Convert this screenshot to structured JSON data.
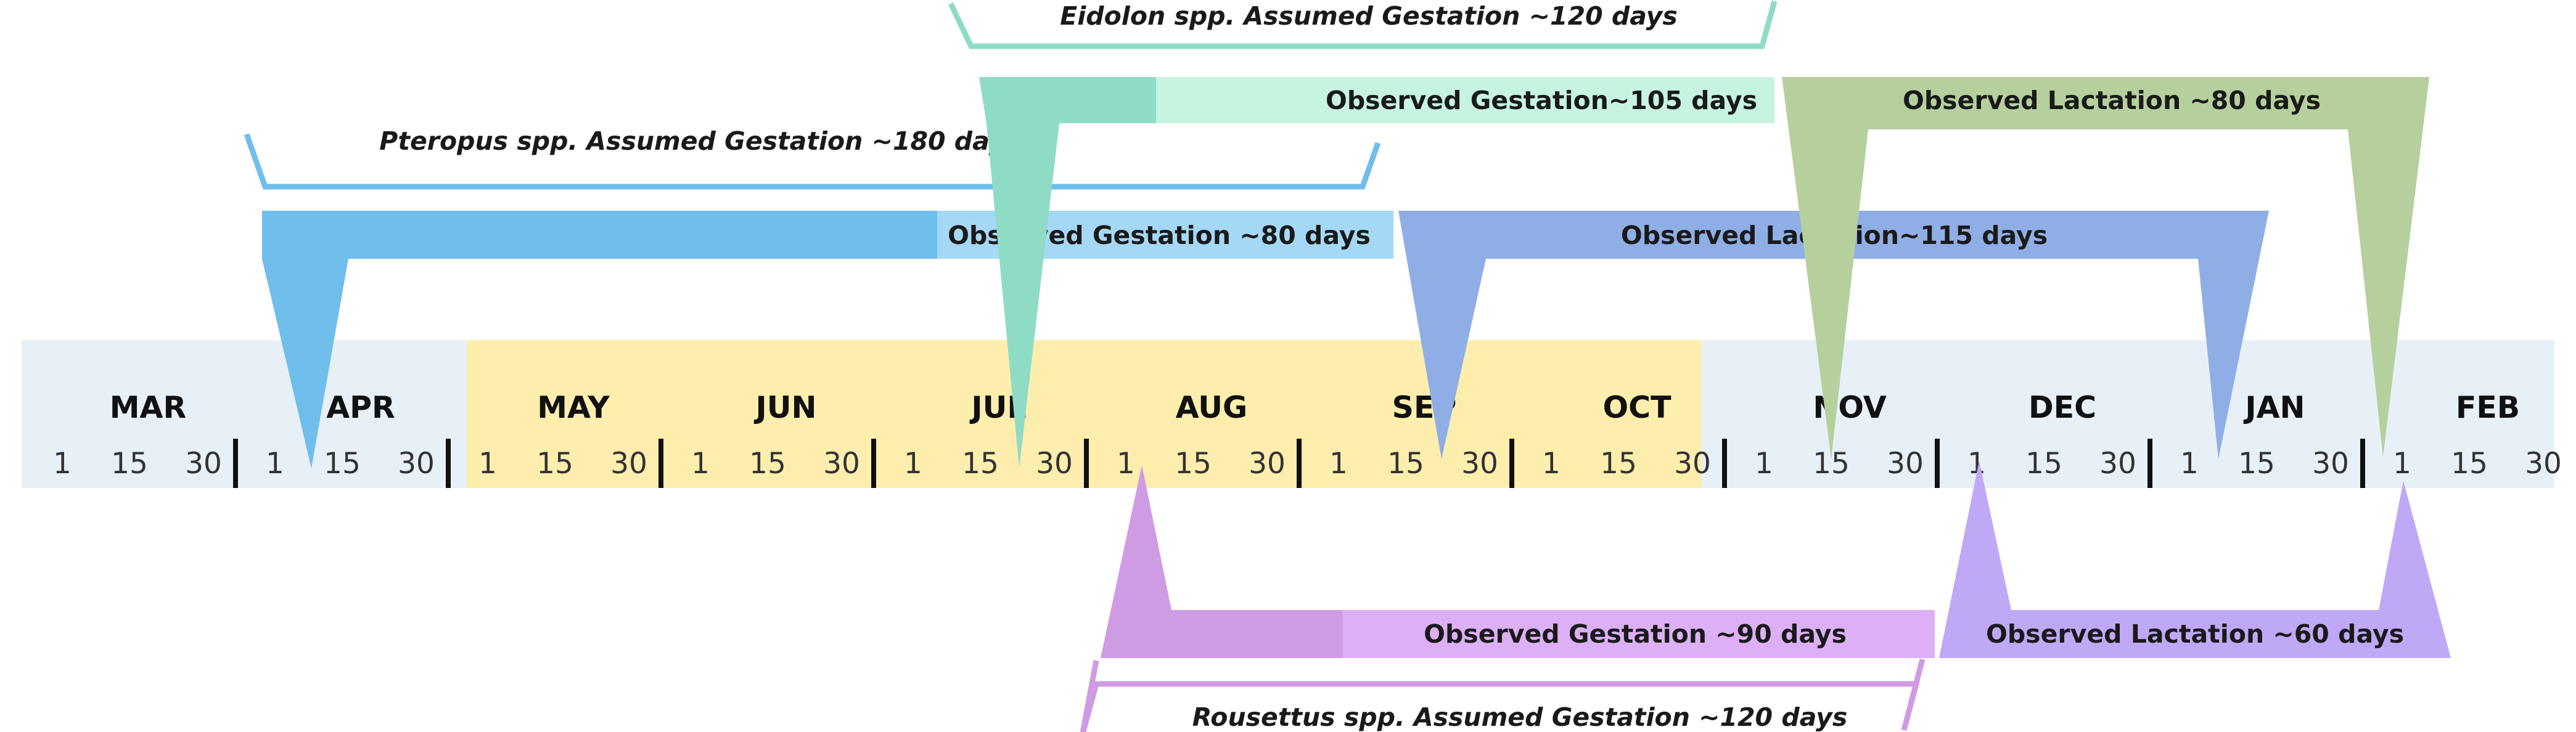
{
  "timeline": {
    "months": [
      "MAR",
      "APR",
      "MAY",
      "JUN",
      "JUL",
      "AUG",
      "SEP",
      "OCT",
      "NOV",
      "DEC",
      "JAN",
      "FEB"
    ],
    "day_ticks": [
      "1",
      "15",
      "30"
    ],
    "highlight_months": [
      "MAY",
      "JUN",
      "JUL",
      "AUG",
      "SEP",
      "OCT"
    ]
  },
  "species": {
    "eidolon": {
      "assumed_label": "Eidolon spp. Assumed Gestation ~120 days",
      "gestation_label": "Observed Gestation~105 days",
      "lactation_label": "Observed Lactation ~80 days",
      "color_dark": "#8fdcc6",
      "color_light": "#c6f4e0",
      "color_lactation": "#b5d09c"
    },
    "pteropus": {
      "assumed_label": "Pteropus spp. Assumed Gestation ~180 days",
      "gestation_label": "Observed Gestation ~80 days",
      "lactation_label": "Observed  Lactation~115 days",
      "color_dark": "#6fbeec",
      "color_light": "#a5d8f6",
      "color_lactation": "#8faee6"
    },
    "rousettus": {
      "assumed_label": "Rousettus spp. Assumed Gestation ~120 days",
      "gestation_label": "Observed Gestation ~90 days",
      "lactation_label": "Observed Lactation ~60 days",
      "color_dark": "#cf9be3",
      "color_light": "#ddaff5",
      "color_lactation": "#bfa8f6"
    }
  },
  "colors": {
    "band_blue": "#e8f0f7",
    "band_yellow": "#fdeeae",
    "divider": "#111111"
  }
}
